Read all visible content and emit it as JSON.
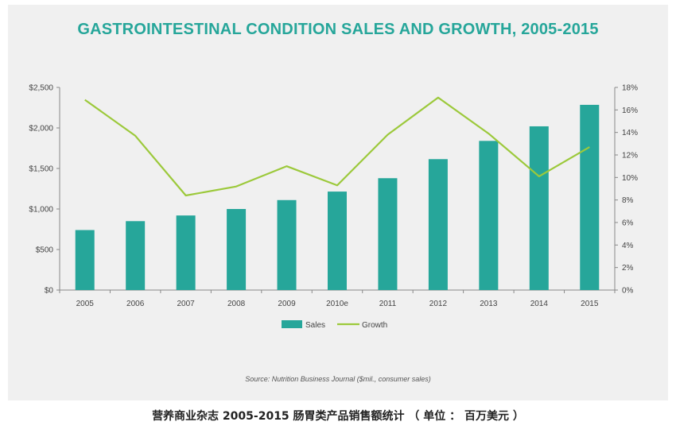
{
  "chart_data": {
    "type": "bar",
    "title": "GASTROINTESTINAL CONDITION SALES AND GROWTH, 2005-2015",
    "categories": [
      "2005",
      "2006",
      "2007",
      "2008",
      "2009",
      "2010e",
      "2011",
      "2012",
      "2013",
      "2014",
      "2015"
    ],
    "series": [
      {
        "name": "Sales",
        "type": "bar",
        "axis": "left",
        "color": "#26a69a",
        "values": [
          740,
          850,
          920,
          1000,
          1110,
          1215,
          1380,
          1615,
          1840,
          2020,
          2285
        ]
      },
      {
        "name": "Growth",
        "type": "line",
        "axis": "right",
        "color": "#9cc93b",
        "values": [
          16.9,
          13.7,
          8.4,
          9.2,
          11.0,
          9.3,
          13.8,
          17.1,
          13.9,
          10.1,
          12.7
        ]
      }
    ],
    "y_left": {
      "ylim": [
        0,
        2500
      ],
      "ticks": [
        0,
        500,
        1000,
        1500,
        2000,
        2500
      ],
      "tick_labels": [
        "$0",
        "$500",
        "$1,000",
        "$1,500",
        "$2,000",
        "$2,500"
      ]
    },
    "y_right": {
      "ylim": [
        0,
        18
      ],
      "ticks": [
        0,
        2,
        4,
        6,
        8,
        10,
        12,
        14,
        16,
        18
      ],
      "tick_labels": [
        "0%",
        "2%",
        "4%",
        "6%",
        "8%",
        "10%",
        "12%",
        "14%",
        "16%",
        "18%"
      ]
    },
    "grid": false,
    "legend_position": "bottom-center",
    "source_note": "Source: Nutrition Business Journal ($mil., consumer sales)"
  },
  "caption": "营养商业杂志 2005-2015 肠胃类产品销售额统计 （ 单位 ： 百万美元 ）"
}
